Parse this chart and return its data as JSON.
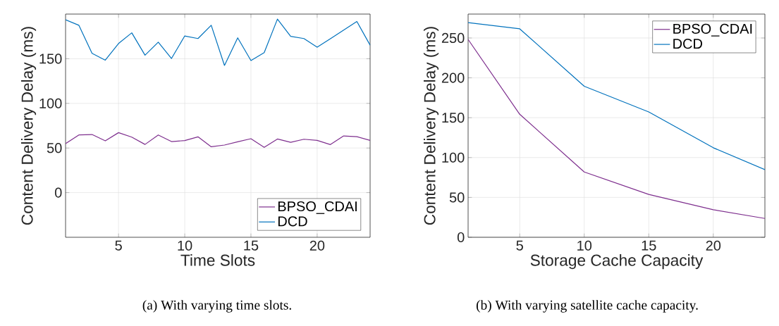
{
  "chart_data": [
    {
      "type": "line",
      "xlabel": "Time Slots",
      "ylabel": "Content Delivery Delay (ms)",
      "annotations": [
        "(a) With varying time slots."
      ],
      "x": [
        1,
        2,
        3,
        4,
        5,
        6,
        7,
        8,
        9,
        10,
        11,
        12,
        13,
        14,
        15,
        16,
        17,
        18,
        19,
        20,
        21,
        22,
        23,
        24
      ],
      "xlim": [
        1,
        24
      ],
      "xticks": [
        5,
        10,
        15,
        20
      ],
      "ylim": [
        -50,
        200
      ],
      "yticks": [
        0,
        50,
        100,
        150
      ],
      "grid": true,
      "legend": "bottom right",
      "series": [
        {
          "name": "BPSO_CDAI",
          "color": "#7e2f8e",
          "values": [
            54.9,
            64.6,
            65.1,
            58,
            67.2,
            62.2,
            54,
            64.6,
            57.2,
            58.3,
            62.5,
            51.4,
            53.3,
            57,
            60.4,
            50.7,
            60.1,
            56.4,
            59.8,
            58.5,
            53.8,
            63.5,
            62.7,
            58.5
          ]
        },
        {
          "name": "DCD",
          "color": "#0072bd",
          "values": [
            193.6,
            187.5,
            156,
            148.4,
            167,
            179,
            154,
            168.6,
            150.3,
            175.5,
            172.6,
            187.5,
            142.4,
            173.4,
            148,
            156.8,
            194.4,
            175,
            172.6,
            162.9,
            172.4,
            182,
            191.7,
            165.2
          ]
        }
      ]
    },
    {
      "type": "line",
      "xlabel": "Storage Cache Capacity",
      "ylabel": "Content Delivery Delay (ms)",
      "annotations": [
        "(b) With varying satellite cache capacity."
      ],
      "x": [
        1,
        5,
        10,
        15,
        20,
        24
      ],
      "xlim": [
        1,
        24
      ],
      "xticks": [
        5,
        10,
        15,
        20
      ],
      "ylim": [
        0,
        280
      ],
      "yticks": [
        0,
        50,
        100,
        150,
        200,
        250
      ],
      "grid": true,
      "legend": "top right",
      "series": [
        {
          "name": "BPSO_CDAI",
          "color": "#7e2f8e",
          "values": [
            248.2,
            154.3,
            81.9,
            53.8,
            34.6,
            23.6
          ]
        },
        {
          "name": "DCD",
          "color": "#0072bd",
          "values": [
            269.2,
            261.5,
            189.4,
            157.2,
            112.3,
            84.8
          ]
        }
      ]
    }
  ]
}
